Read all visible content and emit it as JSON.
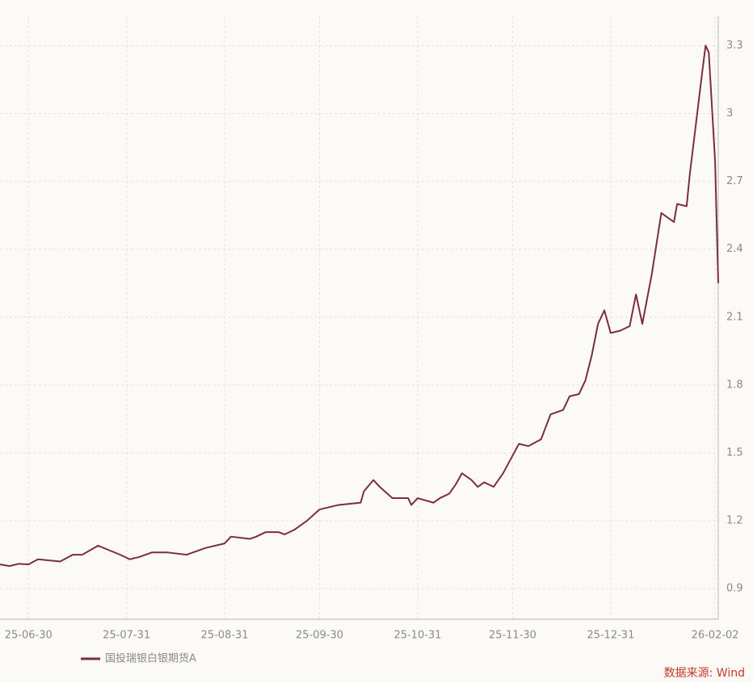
{
  "chart_data": {
    "type": "line",
    "x": [
      "25-06-21",
      "25-06-24",
      "25-06-27",
      "25-06-30",
      "25-07-03",
      "25-07-10",
      "25-07-14",
      "25-07-17",
      "25-07-22",
      "25-07-29",
      "25-08-01",
      "25-08-04",
      "25-08-08",
      "25-08-13",
      "25-08-19",
      "25-08-25",
      "25-08-31",
      "25-09-02",
      "25-09-08",
      "25-09-10",
      "25-09-13",
      "25-09-17",
      "25-09-19",
      "25-09-22",
      "25-09-26",
      "25-09-30",
      "25-10-06",
      "25-10-13",
      "25-10-14",
      "25-10-17",
      "25-10-19",
      "25-10-23",
      "25-10-28",
      "25-10-29",
      "25-10-31",
      "25-11-05",
      "25-11-07",
      "25-11-10",
      "25-11-12",
      "25-11-14",
      "25-11-17",
      "25-11-19",
      "25-11-21",
      "25-11-24",
      "25-11-27",
      "25-12-02",
      "25-12-05",
      "25-12-09",
      "25-12-12",
      "25-12-16",
      "25-12-18",
      "25-12-21",
      "25-12-23",
      "25-12-25",
      "25-12-27",
      "25-12-29",
      "25-12-31",
      "26-01-03",
      "26-01-06",
      "26-01-08",
      "26-01-10",
      "26-01-13",
      "26-01-16",
      "26-01-20",
      "26-01-21",
      "26-01-24",
      "26-01-25",
      "26-01-27",
      "26-01-29",
      "26-01-30",
      "26-01-31",
      "26-02-02",
      "26-02-03"
    ],
    "series": [
      {
        "name": "国投瑞银白银期货A",
        "color": "#7b2e3b",
        "values": [
          1.007,
          1.0,
          1.01,
          1.007,
          1.03,
          1.02,
          1.05,
          1.05,
          1.09,
          1.05,
          1.03,
          1.04,
          1.06,
          1.06,
          1.05,
          1.08,
          1.1,
          1.13,
          1.12,
          1.13,
          1.15,
          1.15,
          1.14,
          1.16,
          1.2,
          1.25,
          1.27,
          1.28,
          1.33,
          1.38,
          1.35,
          1.3,
          1.3,
          1.27,
          1.3,
          1.28,
          1.3,
          1.32,
          1.36,
          1.41,
          1.38,
          1.35,
          1.37,
          1.35,
          1.41,
          1.54,
          1.53,
          1.56,
          1.67,
          1.69,
          1.75,
          1.76,
          1.82,
          1.93,
          2.07,
          2.13,
          2.03,
          2.04,
          2.06,
          2.2,
          2.07,
          2.29,
          2.56,
          2.52,
          2.6,
          2.59,
          2.73,
          2.96,
          3.19,
          3.3,
          3.27,
          2.79,
          2.25
        ]
      }
    ],
    "xlim": [
      "25-06-21",
      "26-02-03"
    ],
    "xticks": [
      "25-06-30",
      "25-07-31",
      "25-08-31",
      "25-09-30",
      "25-10-31",
      "25-11-30",
      "25-12-31",
      "26-02-02"
    ],
    "ylim": [
      0.765,
      3.43
    ],
    "yticks": [
      0.9,
      1.2,
      1.5,
      1.8,
      2.1,
      2.4,
      2.7,
      3,
      3.3
    ],
    "grid": true,
    "source": "数据来源: Wind"
  }
}
